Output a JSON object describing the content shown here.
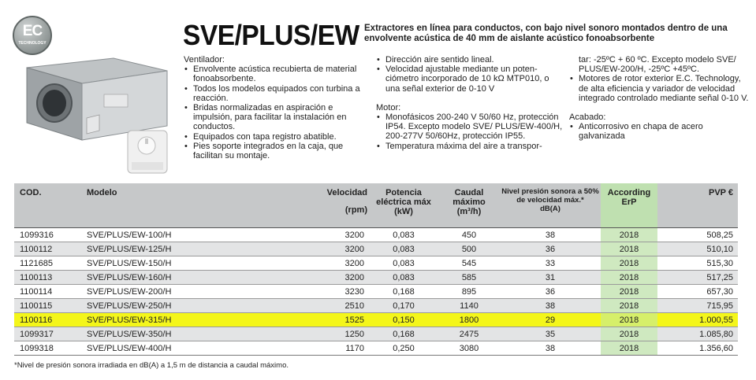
{
  "badge": {
    "ec": "EC",
    "technology": "TECHNOLOGY"
  },
  "title": "SVE/PLUS/EW",
  "intro": "Extractores en línea para conductos, con bajo nivel sonoro montados dentro de una envolvente acústica de 40 mm de aislante acústico fonoabsorbente",
  "col1": {
    "heading": "Ventilador:",
    "items": [
      "Envolvente acústica recubierta de material fonoabsorbente.",
      "Todos los modelos equipados con turbina a reacción.",
      "Bridas normalizadas en aspiración e impulsión, para facilitar la instalación en conductos.",
      "Equipados con tapa registro abatible.",
      "Pies soporte integrados en la caja, que facilitan su montaje."
    ]
  },
  "col2": {
    "items_top": [
      "Dirección aire sentido lineal.",
      "Velocidad ajustable mediante un poten-ciómetro incorporado de 10 kΩ MTP010, o una señal exterior de 0-10 V"
    ],
    "heading": "Motor:",
    "items_bottom": [
      "Monofásicos 200-240 V 50/60 Hz, protección IP54. Excepto modelo SVE/ PLUS/EW-400/H, 200-277V 50/60Hz, protección IP55.",
      "Temperatura máxima del aire a transpor-"
    ]
  },
  "col3": {
    "cont": "tar: -25ºC + 60 ºC. Excepto modelo SVE/ PLUS/EW-200/H, -25ºC +45ºC.",
    "items_top": [
      "Motores de rotor exterior E.C. Technology, de alta eficiencia y variador de velocidad integrado controlado mediante señal 0-10 V."
    ],
    "heading": "Acabado:",
    "items_bottom": [
      "Anticorrosivo en chapa de acero galvanizada"
    ]
  },
  "table": {
    "headers": {
      "cod": "COD.",
      "modelo": "Modelo",
      "velocidad": "Velocidad",
      "velocidad_unit": "(rpm)",
      "potencia": "Potencia eléctrica máx",
      "potencia_unit": "(kW)",
      "caudal": "Caudal máximo",
      "caudal_unit": "(m³/h)",
      "nivel": "Nivel presión sonora a 50% de velocidad máx.*",
      "nivel_unit": "dB(A)",
      "according": "According ErP",
      "pvp": "PVP €"
    },
    "rows": [
      [
        "1099316",
        "SVE/PLUS/EW-100/H",
        "3200",
        "0,083",
        "450",
        "38",
        "2018",
        "508,25"
      ],
      [
        "1100112",
        "SVE/PLUS/EW-125/H",
        "3200",
        "0,083",
        "500",
        "36",
        "2018",
        "510,10"
      ],
      [
        "1121685",
        "SVE/PLUS/EW-150/H",
        "3200",
        "0,083",
        "545",
        "33",
        "2018",
        "515,30"
      ],
      [
        "1100113",
        "SVE/PLUS/EW-160/H",
        "3200",
        "0,083",
        "585",
        "31",
        "2018",
        "517,25"
      ],
      [
        "1100114",
        "SVE/PLUS/EW-200/H",
        "3230",
        "0,168",
        "895",
        "36",
        "2018",
        "657,30"
      ],
      [
        "1100115",
        "SVE/PLUS/EW-250/H",
        "2510",
        "0,170",
        "1140",
        "38",
        "2018",
        "715,95"
      ],
      [
        "1100116",
        "SVE/PLUS/EW-315/H",
        "1525",
        "0,150",
        "1800",
        "29",
        "2018",
        "1.000,55"
      ],
      [
        "1099317",
        "SVE/PLUS/EW-350/H",
        "1250",
        "0,168",
        "2475",
        "35",
        "2018",
        "1.085,80"
      ],
      [
        "1099318",
        "SVE/PLUS/EW-400/H",
        "1170",
        "0,250",
        "3080",
        "38",
        "2018",
        "1.356,60"
      ]
    ],
    "highlighted_row": 6,
    "highlight_color": "#f4f61a",
    "erp_color": "#cfe9c0"
  },
  "footnote": "*Nivel de presión sonora irradiada en dB(A) a 1,5 m de distancia a caudal máximo."
}
